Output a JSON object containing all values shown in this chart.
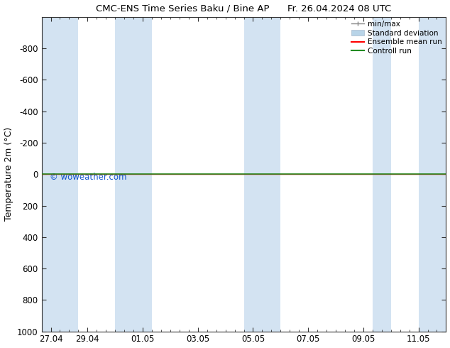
{
  "title": "CMC-ENS Time Series Baku / Bine AP      Fr. 26.04.2024 08 UTC",
  "ylabel": "Temperature 2m (°C)",
  "watermark": "© woweather.com",
  "background_color": "#ffffff",
  "plot_bg_color": "#ffffff",
  "ylim_bottom": 1000,
  "ylim_top": -1000,
  "yticks": [
    -800,
    -600,
    -400,
    -200,
    0,
    200,
    400,
    600,
    800,
    1000
  ],
  "shade_color": "#ccdff0",
  "shade_alpha": 0.85,
  "control_run_color": "#228B22",
  "ensemble_mean_color": "#ff0000",
  "min_max_color": "#888888",
  "std_dev_color": "#b8d4e8",
  "legend_labels": [
    "min/max",
    "Standard deviation",
    "Ensemble mean run",
    "Controll run"
  ],
  "x_tick_labels": [
    "27.04",
    "29.04",
    "01.05",
    "03.05",
    "05.05",
    "07.05",
    "09.05",
    "11.05"
  ],
  "x_tick_positions": [
    0,
    2,
    5,
    8,
    11,
    14,
    17,
    20
  ],
  "shade_bands": [
    [
      -0.5,
      1.5
    ],
    [
      3.5,
      5.5
    ],
    [
      10.5,
      12.5
    ],
    [
      17.5,
      18.5
    ],
    [
      20.0,
      21.5
    ]
  ],
  "control_run_y": 0,
  "num_days": 21,
  "xlim_left": -0.5,
  "xlim_right": 21.5
}
